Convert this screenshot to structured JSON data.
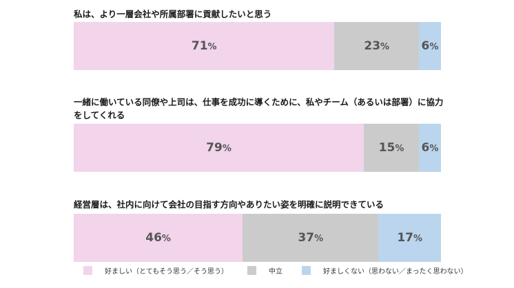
{
  "chart_data": {
    "type": "bar",
    "orientation": "horizontal-stacked",
    "legend_position": "bottom",
    "series": [
      {
        "name": "好ましい（とてもそう思う／そう思う）",
        "color": "#f2d4eb"
      },
      {
        "name": "中立",
        "color": "#cbcbcb"
      },
      {
        "name": "好ましくない（思わない／まったく思わない）",
        "color": "#bcd5ee"
      }
    ],
    "categories": [
      {
        "label": "私は、より一層会社や所属部署に貢献したいと思う",
        "values": [
          71,
          23,
          6
        ]
      },
      {
        "label": "一緒に働いている同僚や上司は、仕事を成功に導くために、私やチーム（あるいは部署）に協力をしてくれる",
        "values": [
          79,
          15,
          6
        ]
      },
      {
        "label": "経営層は、社内に向けて会社の目指す方向やありたい姿を明確に説明できている",
        "values": [
          46,
          37,
          17
        ]
      }
    ],
    "unit": "%"
  }
}
